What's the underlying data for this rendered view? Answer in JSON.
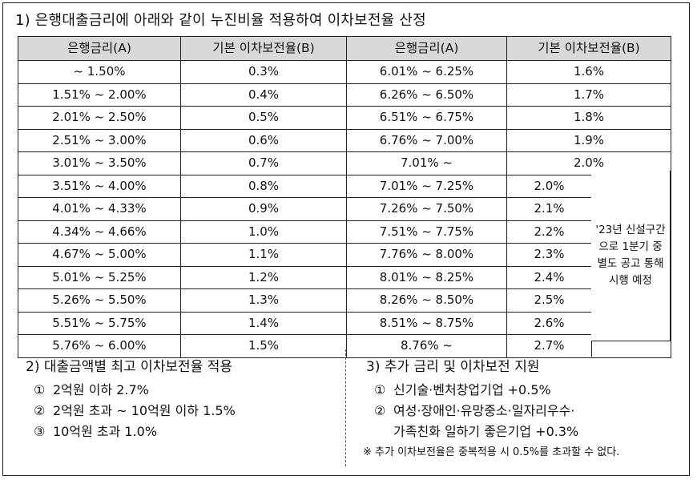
{
  "heading": "1) 은행대출금리에 아래와 같이 누진비율 적용하여 이차보전율 산정",
  "table": {
    "headers": [
      "은행금리(A)",
      "기본 이차보전율(B)",
      "은행금리(A)",
      "기본 이차보전율(B)"
    ],
    "rows_top": [
      {
        "a1": "~ 1.50%",
        "b1": "0.3%",
        "a2": "6.01% ~ 6.25%",
        "b2": "1.6%"
      },
      {
        "a1": "1.51% ~ 2.00%",
        "b1": "0.4%",
        "a2": "6.26% ~ 6.50%",
        "b2": "1.7%"
      },
      {
        "a1": "2.01% ~ 2.50%",
        "b1": "0.5%",
        "a2": "6.51% ~ 6.75%",
        "b2": "1.8%"
      },
      {
        "a1": "2.51% ~ 3.00%",
        "b1": "0.6%",
        "a2": "6.76% ~ 7.00%",
        "b2": "1.9%"
      },
      {
        "a1": "3.01% ~ 3.50%",
        "b1": "0.7%",
        "a2": "7.01% ~",
        "b2": "2.0%"
      }
    ],
    "rows_bottom": [
      {
        "a1": "3.51% ~ 4.00%",
        "b1": "0.8%",
        "a2": "7.01% ~ 7.25%",
        "b2": "2.0%"
      },
      {
        "a1": "4.01% ~ 4.33%",
        "b1": "0.9%",
        "a2": "7.26% ~ 7.50%",
        "b2": "2.1%"
      },
      {
        "a1": "4.34% ~ 4.66%",
        "b1": "1.0%",
        "a2": "7.51% ~ 7.75%",
        "b2": "2.2%"
      },
      {
        "a1": "4.67% ~ 5.00%",
        "b1": "1.1%",
        "a2": "7.76% ~ 8.00%",
        "b2": "2.3%"
      },
      {
        "a1": "5.01% ~ 5.25%",
        "b1": "1.2%",
        "a2": "8.01% ~ 8.25%",
        "b2": "2.4%"
      },
      {
        "a1": "5.26% ~ 5.50%",
        "b1": "1.3%",
        "a2": "8.26% ~ 8.50%",
        "b2": "2.5%"
      },
      {
        "a1": "5.51% ~ 5.75%",
        "b1": "1.4%",
        "a2": "8.51% ~ 8.75%",
        "b2": "2.6%"
      },
      {
        "a1": "5.76% ~ 6.00%",
        "b1": "1.5%",
        "a2": "8.76% ~",
        "b2": "2.7%"
      }
    ],
    "note": "'23년 신설구간으로 1분기 중 별도 공고 통해 시행 예정"
  },
  "section2": {
    "title": "2) 대출금액별 최고 이차보전율 적용",
    "items": [
      {
        "num": "①",
        "text": "2억원 이하 2.7%"
      },
      {
        "num": "②",
        "text": "2억원 초과 ~ 10억원 이하 1.5%"
      },
      {
        "num": "③",
        "text": "10억원 초과 1.0%"
      }
    ]
  },
  "section3": {
    "title": "3) 추가 금리 및 이차보전 지원",
    "items": [
      {
        "num": "①",
        "text": "신기술·벤처창업기업 +0.5%"
      },
      {
        "num": "②",
        "text": "여성·장애인·유망중소·일자리우수·"
      }
    ],
    "item2_cont": "가족친화 일하기 좋은기업 +0.3%",
    "footnote": "※ 추가 이차보전율은 중복적용 시 0.5%를 초과할 수 없다."
  }
}
